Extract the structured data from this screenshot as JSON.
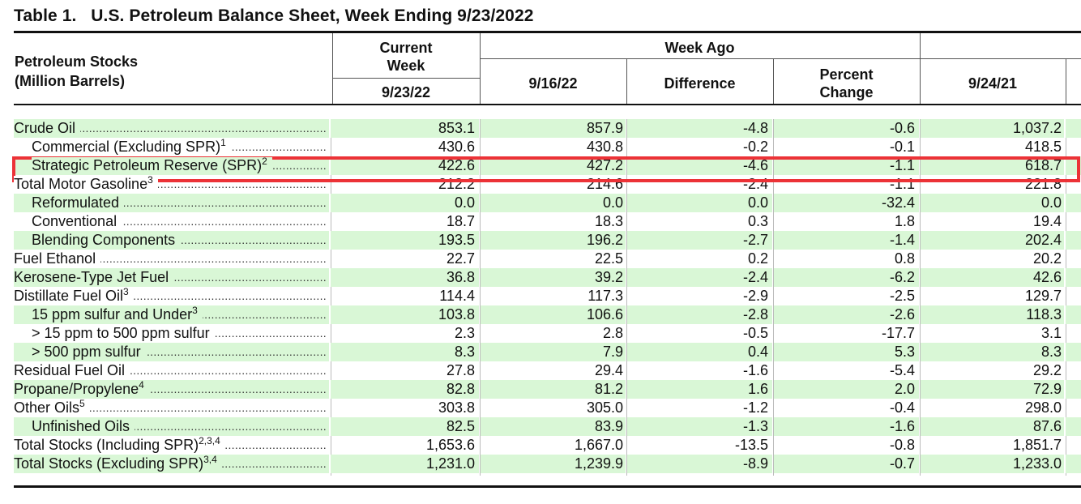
{
  "title": "Table 1.   U.S. Petroleum Balance Sheet, Week Ending 9/23/2022",
  "header": {
    "stub_line1": "Petroleum Stocks",
    "stub_line2": "(Million Barrels)",
    "current_week_line1": "Current",
    "current_week_line2": "Week",
    "current_week_date": "9/23/22",
    "week_ago": "Week Ago",
    "week_ago_date": "9/16/22",
    "difference": "Difference",
    "percent_line1": "Percent",
    "percent_line2": "Change",
    "year_ago_date": "9/24/21"
  },
  "rows": [
    {
      "label": "Crude Oil",
      "sup": "",
      "indent": false,
      "shade": true,
      "values": [
        "853.1",
        "857.9",
        "-4.8",
        "-0.6",
        "1,037.2"
      ]
    },
    {
      "label": "Commercial (Excluding SPR)",
      "sup": "1",
      "indent": true,
      "shade": false,
      "values": [
        "430.6",
        "430.8",
        "-0.2",
        "-0.1",
        "418.5"
      ]
    },
    {
      "label": "Strategic Petroleum Reserve (SPR)",
      "sup": "2",
      "indent": true,
      "shade": true,
      "values": [
        "422.6",
        "427.2",
        "-4.6",
        "-1.1",
        "618.7"
      ]
    },
    {
      "label": "Total Motor Gasoline",
      "sup": "3",
      "indent": false,
      "shade": false,
      "values": [
        "212.2",
        "214.6",
        "-2.4",
        "-1.1",
        "221.8"
      ]
    },
    {
      "label": "Reformulated",
      "sup": "",
      "indent": true,
      "shade": true,
      "values": [
        "0.0",
        "0.0",
        "0.0",
        "-32.4",
        "0.0"
      ]
    },
    {
      "label": "Conventional",
      "sup": "",
      "indent": true,
      "shade": false,
      "values": [
        "18.7",
        "18.3",
        "0.3",
        "1.8",
        "19.4"
      ]
    },
    {
      "label": "Blending Components",
      "sup": "",
      "indent": true,
      "shade": true,
      "values": [
        "193.5",
        "196.2",
        "-2.7",
        "-1.4",
        "202.4"
      ]
    },
    {
      "label": "Fuel Ethanol",
      "sup": "",
      "indent": false,
      "shade": false,
      "values": [
        "22.7",
        "22.5",
        "0.2",
        "0.8",
        "20.2"
      ]
    },
    {
      "label": "Kerosene-Type Jet Fuel",
      "sup": "",
      "indent": false,
      "shade": true,
      "values": [
        "36.8",
        "39.2",
        "-2.4",
        "-6.2",
        "42.6"
      ]
    },
    {
      "label": "Distillate Fuel Oil",
      "sup": "3",
      "indent": false,
      "shade": false,
      "values": [
        "114.4",
        "117.3",
        "-2.9",
        "-2.5",
        "129.7"
      ]
    },
    {
      "label": "15 ppm sulfur and Under",
      "sup": "3",
      "indent": true,
      "shade": true,
      "values": [
        "103.8",
        "106.6",
        "-2.8",
        "-2.6",
        "118.3"
      ]
    },
    {
      "label": "> 15 ppm to 500 ppm sulfur",
      "sup": "",
      "indent": true,
      "shade": false,
      "values": [
        "2.3",
        "2.8",
        "-0.5",
        "-17.7",
        "3.1"
      ]
    },
    {
      "label": "> 500 ppm sulfur",
      "sup": "",
      "indent": true,
      "shade": true,
      "values": [
        "8.3",
        "7.9",
        "0.4",
        "5.3",
        "8.3"
      ]
    },
    {
      "label": "Residual Fuel Oil",
      "sup": "",
      "indent": false,
      "shade": false,
      "values": [
        "27.8",
        "29.4",
        "-1.6",
        "-5.4",
        "29.2"
      ]
    },
    {
      "label": "Propane/Propylene",
      "sup": "4",
      "indent": false,
      "shade": true,
      "values": [
        "82.8",
        "81.2",
        "1.6",
        "2.0",
        "72.9"
      ]
    },
    {
      "label": "Other Oils",
      "sup": "5",
      "indent": false,
      "shade": false,
      "values": [
        "303.8",
        "305.0",
        "-1.2",
        "-0.4",
        "298.0"
      ]
    },
    {
      "label": "Unfinished Oils",
      "sup": "",
      "indent": true,
      "shade": true,
      "values": [
        "82.5",
        "83.9",
        "-1.3",
        "-1.6",
        "87.6"
      ]
    },
    {
      "label": "Total Stocks (Including SPR)",
      "sup": "2,3,4",
      "indent": false,
      "shade": false,
      "values": [
        "1,653.6",
        "1,667.0",
        "-13.5",
        "-0.8",
        "1,851.7"
      ]
    },
    {
      "label": "Total Stocks (Excluding SPR)",
      "sup": "3,4",
      "indent": false,
      "shade": true,
      "values": [
        "1,231.0",
        "1,239.9",
        "-8.9",
        "-0.7",
        "1,233.0"
      ]
    }
  ],
  "colors": {
    "row_shade": "#d9f7d6",
    "highlight": "#ec3237"
  }
}
